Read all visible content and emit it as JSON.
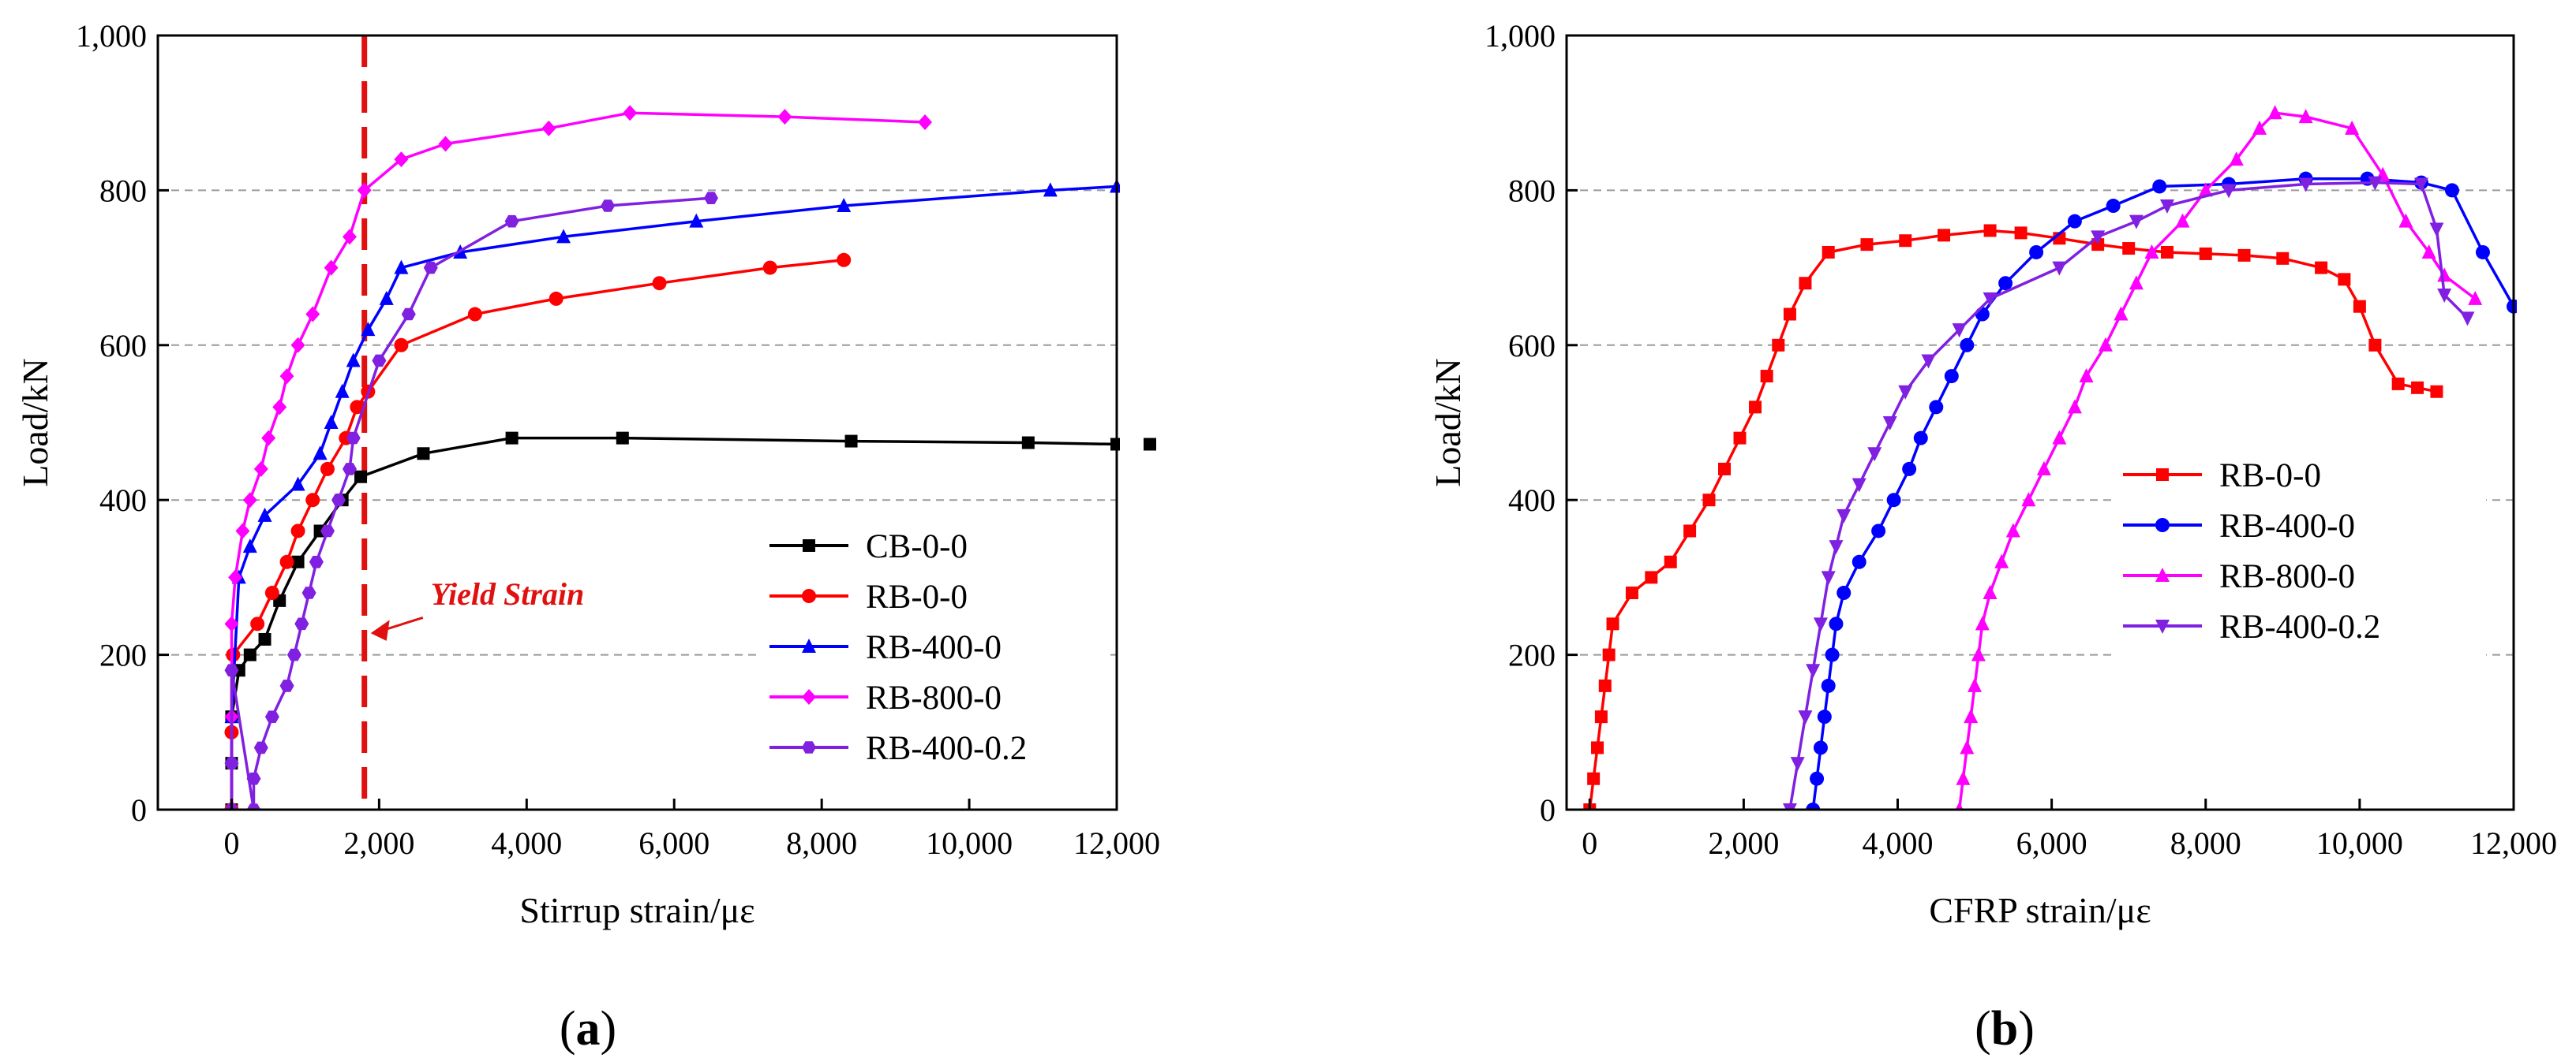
{
  "chart_data": [
    {
      "panel_label": "(a)",
      "panel_letter": "a",
      "type": "line",
      "xlabel": "Stirrup strain/με",
      "ylabel": "Load/kN",
      "xlim": [
        -1000,
        12000
      ],
      "ylim": [
        0,
        1000
      ],
      "x_ticks": [
        "0",
        "2,000",
        "4,000",
        "6,000",
        "8,000",
        "10,000",
        "12,000"
      ],
      "x_tick_values": [
        0,
        2000,
        4000,
        6000,
        8000,
        10000,
        12000
      ],
      "y_ticks": [
        "0",
        "200",
        "400",
        "600",
        "800",
        "1,000"
      ],
      "y_tick_values": [
        0,
        200,
        400,
        600,
        800,
        1000
      ],
      "grid": "horizontal dashed",
      "legend_position": "bottom-right",
      "annotation": {
        "text": "Yield Strain",
        "x": 1800,
        "color": "#e01010"
      },
      "series": [
        {
          "name": "CB-0-0",
          "color": "#000000",
          "marker": "square",
          "points": [
            [
              0,
              0
            ],
            [
              0,
              60
            ],
            [
              0,
              120
            ],
            [
              100,
              180
            ],
            [
              250,
              200
            ],
            [
              450,
              220
            ],
            [
              650,
              270
            ],
            [
              900,
              320
            ],
            [
              1200,
              360
            ],
            [
              1500,
              400
            ],
            [
              1750,
              430
            ],
            [
              2600,
              460
            ],
            [
              3800,
              480
            ],
            [
              5300,
              480
            ],
            [
              8400,
              476
            ],
            [
              10800,
              474
            ],
            [
              12000,
              472
            ]
          ]
        },
        {
          "name": "RB-0-0",
          "color": "#ff0000",
          "marker": "circle",
          "points": [
            [
              0,
              0
            ],
            [
              0,
              100
            ],
            [
              20,
              200
            ],
            [
              350,
              240
            ],
            [
              550,
              280
            ],
            [
              750,
              320
            ],
            [
              900,
              360
            ],
            [
              1100,
              400
            ],
            [
              1300,
              440
            ],
            [
              1550,
              480
            ],
            [
              1700,
              520
            ],
            [
              1850,
              540
            ],
            [
              2300,
              600
            ],
            [
              3300,
              640
            ],
            [
              4400,
              660
            ],
            [
              5800,
              680
            ],
            [
              7300,
              700
            ],
            [
              8300,
              710
            ]
          ]
        },
        {
          "name": "RB-400-0",
          "color": "#0000ff",
          "marker": "triangle-up",
          "points": [
            [
              0,
              0
            ],
            [
              0,
              120
            ],
            [
              100,
              300
            ],
            [
              250,
              340
            ],
            [
              450,
              380
            ],
            [
              900,
              420
            ],
            [
              1200,
              460
            ],
            [
              1350,
              500
            ],
            [
              1500,
              540
            ],
            [
              1650,
              580
            ],
            [
              1850,
              620
            ],
            [
              2100,
              660
            ],
            [
              2300,
              700
            ],
            [
              3100,
              720
            ],
            [
              4500,
              740
            ],
            [
              6300,
              760
            ],
            [
              8300,
              780
            ],
            [
              11100,
              800
            ],
            [
              12000,
              805
            ]
          ]
        },
        {
          "name": "RB-800-0",
          "color": "#ff00ff",
          "marker": "diamond",
          "points": [
            [
              0,
              0
            ],
            [
              0,
              120
            ],
            [
              0,
              240
            ],
            [
              50,
              300
            ],
            [
              150,
              360
            ],
            [
              250,
              400
            ],
            [
              400,
              440
            ],
            [
              500,
              480
            ],
            [
              650,
              520
            ],
            [
              750,
              560
            ],
            [
              900,
              600
            ],
            [
              1100,
              640
            ],
            [
              1350,
              700
            ],
            [
              1600,
              740
            ],
            [
              1800,
              800
            ],
            [
              2300,
              840
            ],
            [
              2900,
              860
            ],
            [
              4300,
              880
            ],
            [
              5400,
              900
            ],
            [
              7500,
              895
            ],
            [
              9400,
              888
            ]
          ]
        },
        {
          "name": "RB-400-0.2",
          "color": "#8020e0",
          "marker": "hexagon",
          "points": [
            [
              0,
              0
            ],
            [
              0,
              60
            ],
            [
              0,
              180
            ],
            [
              300,
              0
            ],
            [
              300,
              40
            ],
            [
              400,
              80
            ],
            [
              550,
              120
            ],
            [
              750,
              160
            ],
            [
              850,
              200
            ],
            [
              950,
              240
            ],
            [
              1050,
              280
            ],
            [
              1150,
              320
            ],
            [
              1300,
              360
            ],
            [
              1450,
              400
            ],
            [
              1600,
              440
            ],
            [
              1650,
              480
            ],
            [
              2000,
              580
            ],
            [
              2400,
              640
            ],
            [
              2700,
              700
            ],
            [
              3800,
              760
            ],
            [
              5100,
              780
            ],
            [
              6500,
              790
            ]
          ]
        }
      ]
    },
    {
      "panel_label": "(b)",
      "panel_letter": "b",
      "type": "line",
      "xlabel": "CFRP strain/με",
      "ylabel": "Load/kN",
      "xlim": [
        -300,
        12000
      ],
      "ylim": [
        0,
        1000
      ],
      "x_ticks": [
        "0",
        "2,000",
        "4,000",
        "6,000",
        "8,000",
        "10,000",
        "12,000"
      ],
      "x_tick_values": [
        0,
        2000,
        4000,
        6000,
        8000,
        10000,
        12000
      ],
      "y_ticks": [
        "0",
        "200",
        "400",
        "600",
        "800",
        "1,000"
      ],
      "y_tick_values": [
        0,
        200,
        400,
        600,
        800,
        1000
      ],
      "grid": "horizontal dashed",
      "legend_position": "center-right",
      "series": [
        {
          "name": "RB-0-0",
          "color": "#ff0000",
          "marker": "square",
          "points": [
            [
              0,
              0
            ],
            [
              50,
              40
            ],
            [
              100,
              80
            ],
            [
              150,
              120
            ],
            [
              200,
              160
            ],
            [
              250,
              200
            ],
            [
              300,
              240
            ],
            [
              550,
              280
            ],
            [
              800,
              300
            ],
            [
              1050,
              320
            ],
            [
              1300,
              360
            ],
            [
              1550,
              400
            ],
            [
              1750,
              440
            ],
            [
              1950,
              480
            ],
            [
              2150,
              520
            ],
            [
              2300,
              560
            ],
            [
              2450,
              600
            ],
            [
              2600,
              640
            ],
            [
              2800,
              680
            ],
            [
              3100,
              720
            ],
            [
              3600,
              730
            ],
            [
              4100,
              735
            ],
            [
              4600,
              742
            ],
            [
              5200,
              748
            ],
            [
              5600,
              745
            ],
            [
              6100,
              738
            ],
            [
              6600,
              730
            ],
            [
              7000,
              725
            ],
            [
              7500,
              720
            ],
            [
              8000,
              718
            ],
            [
              8500,
              716
            ],
            [
              9000,
              712
            ],
            [
              9500,
              700
            ],
            [
              9800,
              685
            ],
            [
              10000,
              650
            ],
            [
              10200,
              600
            ],
            [
              10500,
              550
            ],
            [
              10750,
              545
            ],
            [
              11000,
              540
            ]
          ]
        },
        {
          "name": "RB-400-0",
          "color": "#0000ff",
          "marker": "circle",
          "points": [
            [
              2900,
              0
            ],
            [
              2950,
              40
            ],
            [
              3000,
              80
            ],
            [
              3050,
              120
            ],
            [
              3100,
              160
            ],
            [
              3150,
              200
            ],
            [
              3200,
              240
            ],
            [
              3300,
              280
            ],
            [
              3500,
              320
            ],
            [
              3750,
              360
            ],
            [
              3950,
              400
            ],
            [
              4150,
              440
            ],
            [
              4300,
              480
            ],
            [
              4500,
              520
            ],
            [
              4700,
              560
            ],
            [
              4900,
              600
            ],
            [
              5100,
              640
            ],
            [
              5400,
              680
            ],
            [
              5800,
              720
            ],
            [
              6300,
              760
            ],
            [
              6800,
              780
            ],
            [
              7400,
              805
            ],
            [
              8300,
              808
            ],
            [
              9300,
              815
            ],
            [
              10100,
              815
            ],
            [
              10800,
              810
            ],
            [
              11200,
              800
            ],
            [
              11600,
              720
            ],
            [
              12000,
              650
            ]
          ]
        },
        {
          "name": "RB-800-0",
          "color": "#ff00ff",
          "marker": "triangle-up",
          "points": [
            [
              4800,
              0
            ],
            [
              4850,
              40
            ],
            [
              4900,
              80
            ],
            [
              4950,
              120
            ],
            [
              5000,
              160
            ],
            [
              5050,
              200
            ],
            [
              5100,
              240
            ],
            [
              5200,
              280
            ],
            [
              5350,
              320
            ],
            [
              5500,
              360
            ],
            [
              5700,
              400
            ],
            [
              5900,
              440
            ],
            [
              6100,
              480
            ],
            [
              6300,
              520
            ],
            [
              6450,
              560
            ],
            [
              6700,
              600
            ],
            [
              6900,
              640
            ],
            [
              7100,
              680
            ],
            [
              7300,
              720
            ],
            [
              7700,
              760
            ],
            [
              8000,
              800
            ],
            [
              8400,
              840
            ],
            [
              8700,
              880
            ],
            [
              8900,
              900
            ],
            [
              9300,
              895
            ],
            [
              9900,
              880
            ],
            [
              10300,
              820
            ],
            [
              10600,
              760
            ],
            [
              10900,
              720
            ],
            [
              11100,
              690
            ],
            [
              11500,
              660
            ]
          ]
        },
        {
          "name": "RB-400-0.2",
          "color": "#8020e0",
          "marker": "triangle-down",
          "points": [
            [
              2600,
              0
            ],
            [
              2700,
              60
            ],
            [
              2800,
              120
            ],
            [
              2900,
              180
            ],
            [
              3000,
              240
            ],
            [
              3100,
              300
            ],
            [
              3200,
              340
            ],
            [
              3300,
              380
            ],
            [
              3500,
              420
            ],
            [
              3700,
              460
            ],
            [
              3900,
              500
            ],
            [
              4100,
              540
            ],
            [
              4400,
              580
            ],
            [
              4800,
              620
            ],
            [
              5200,
              660
            ],
            [
              6100,
              700
            ],
            [
              6600,
              740
            ],
            [
              7100,
              760
            ],
            [
              7500,
              780
            ],
            [
              8300,
              800
            ],
            [
              9300,
              808
            ],
            [
              10200,
              810
            ],
            [
              10800,
              808
            ],
            [
              11000,
              750
            ],
            [
              11100,
              665
            ],
            [
              11400,
              635
            ]
          ]
        }
      ]
    }
  ]
}
